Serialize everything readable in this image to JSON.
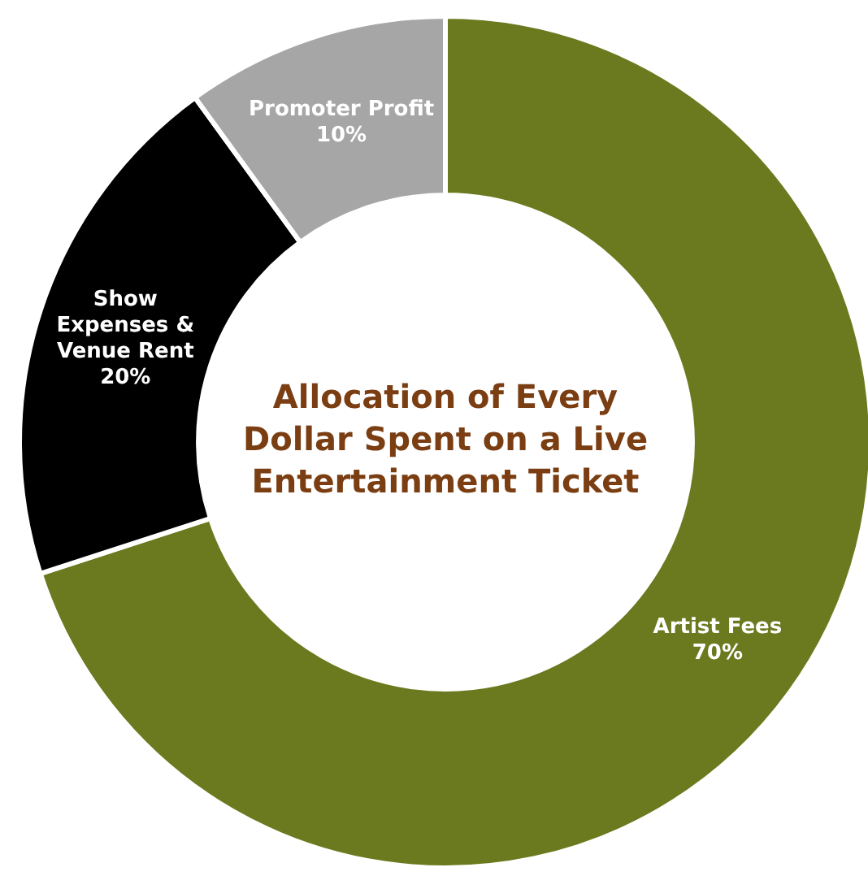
{
  "chart_data": {
    "type": "donut",
    "title": "Allocation of Every Dollar Spent on a Live Entertainment Ticket",
    "categories": [
      "Artist Fees",
      "Show Expenses & Venue Rent",
      "Promoter Profit"
    ],
    "values": [
      70,
      20,
      10
    ],
    "value_labels": [
      "70%",
      "20%",
      "10%"
    ],
    "colors": [
      "#6b7a1f",
      "#000000",
      "#a6a6a6"
    ]
  }
}
